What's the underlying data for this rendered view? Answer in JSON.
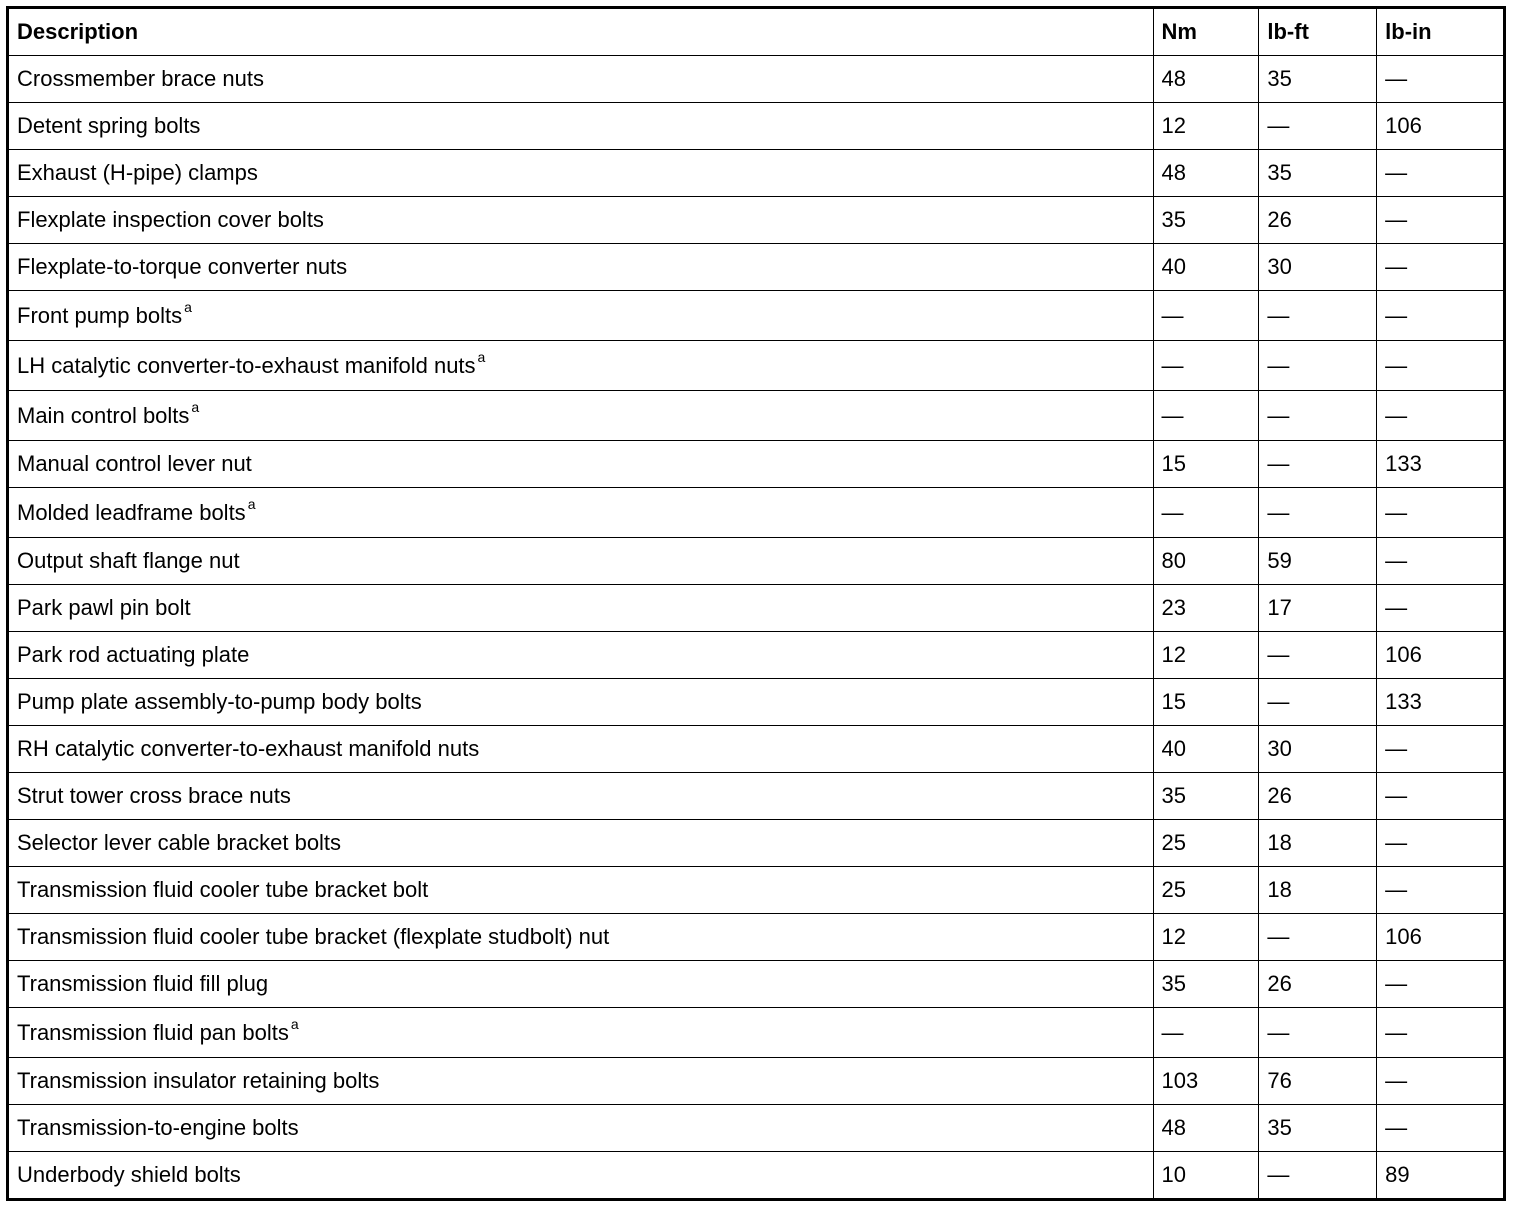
{
  "headers": [
    "Description",
    "Nm",
    "lb-ft",
    "lb-in"
  ],
  "rows": [
    {
      "desc": "Crossmember brace nuts",
      "sup": "",
      "nm": "48",
      "lbft": "35",
      "lbin": "—"
    },
    {
      "desc": "Detent spring bolts",
      "sup": "",
      "nm": "12",
      "lbft": "—",
      "lbin": "106"
    },
    {
      "desc": "Exhaust (H-pipe) clamps",
      "sup": "",
      "nm": "48",
      "lbft": "35",
      "lbin": "—"
    },
    {
      "desc": "Flexplate inspection cover bolts",
      "sup": "",
      "nm": "35",
      "lbft": "26",
      "lbin": "—"
    },
    {
      "desc": "Flexplate-to-torque converter nuts",
      "sup": "",
      "nm": "40",
      "lbft": "30",
      "lbin": "—"
    },
    {
      "desc": "Front pump bolts",
      "sup": "a",
      "nm": "—",
      "lbft": "—",
      "lbin": "—"
    },
    {
      "desc": "LH catalytic converter-to-exhaust manifold nuts",
      "sup": "a",
      "nm": "—",
      "lbft": "—",
      "lbin": "—"
    },
    {
      "desc": "Main control bolts",
      "sup": "a",
      "nm": "—",
      "lbft": "—",
      "lbin": "—"
    },
    {
      "desc": "Manual control lever nut",
      "sup": "",
      "nm": "15",
      "lbft": "—",
      "lbin": "133"
    },
    {
      "desc": "Molded leadframe bolts",
      "sup": "a",
      "nm": "—",
      "lbft": "—",
      "lbin": "—"
    },
    {
      "desc": "Output shaft flange nut",
      "sup": "",
      "nm": "80",
      "lbft": "59",
      "lbin": "—"
    },
    {
      "desc": "Park pawl pin bolt",
      "sup": "",
      "nm": "23",
      "lbft": "17",
      "lbin": "—"
    },
    {
      "desc": "Park rod actuating plate",
      "sup": "",
      "nm": "12",
      "lbft": "—",
      "lbin": "106"
    },
    {
      "desc": "Pump plate assembly-to-pump body bolts",
      "sup": "",
      "nm": "15",
      "lbft": "—",
      "lbin": "133"
    },
    {
      "desc": "RH catalytic converter-to-exhaust manifold nuts",
      "sup": "",
      "nm": "40",
      "lbft": "30",
      "lbin": "—"
    },
    {
      "desc": "Strut tower cross brace nuts",
      "sup": "",
      "nm": "35",
      "lbft": "26",
      "lbin": "—"
    },
    {
      "desc": "Selector lever cable bracket bolts",
      "sup": "",
      "nm": "25",
      "lbft": "18",
      "lbin": "—"
    },
    {
      "desc": "Transmission fluid cooler tube bracket bolt",
      "sup": "",
      "nm": "25",
      "lbft": "18",
      "lbin": "—"
    },
    {
      "desc": "Transmission fluid cooler tube bracket (flexplate studbolt) nut",
      "sup": "",
      "nm": "12",
      "lbft": "—",
      "lbin": "106"
    },
    {
      "desc": "Transmission fluid fill plug",
      "sup": "",
      "nm": "35",
      "lbft": "26",
      "lbin": "—"
    },
    {
      "desc": "Transmission fluid pan bolts",
      "sup": "a",
      "nm": "—",
      "lbft": "—",
      "lbin": "—"
    },
    {
      "desc": "Transmission insulator retaining bolts",
      "sup": "",
      "nm": "103",
      "lbft": "76",
      "lbin": "—"
    },
    {
      "desc": "Transmission-to-engine bolts",
      "sup": "",
      "nm": "48",
      "lbft": "35",
      "lbin": "—"
    },
    {
      "desc": "Underbody shield bolts",
      "sup": "",
      "nm": "10",
      "lbft": "—",
      "lbin": "89"
    }
  ]
}
